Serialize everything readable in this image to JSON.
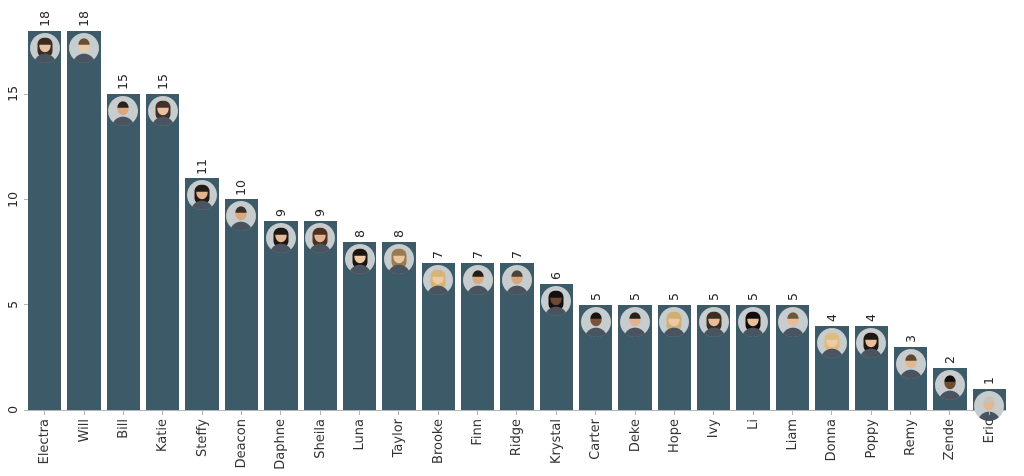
{
  "chart_data": {
    "type": "bar",
    "title": "",
    "xlabel": "",
    "ylabel": "",
    "categories": [
      "Electra",
      "Will",
      "Bill",
      "Katie",
      "Steffy",
      "Deacon",
      "Daphne",
      "Sheila",
      "Luna",
      "Taylor",
      "Brooke",
      "Finn",
      "Ridge",
      "Krystal",
      "Carter",
      "Deke",
      "Hope",
      "Ivy",
      "Li",
      "Liam",
      "Donna",
      "Poppy",
      "Remy",
      "Zende",
      "Eric"
    ],
    "values": [
      18,
      18,
      15,
      15,
      11,
      10,
      9,
      9,
      8,
      8,
      7,
      7,
      7,
      6,
      5,
      5,
      5,
      5,
      5,
      5,
      4,
      4,
      3,
      2,
      1
    ],
    "value_labels": [
      "18",
      "18",
      "15",
      "15",
      "11",
      "10",
      "9",
      "9",
      "8",
      "8",
      "7",
      "7",
      "7",
      "6",
      "5",
      "5",
      "5",
      "5",
      "5",
      "5",
      "4",
      "4",
      "3",
      "2",
      "1"
    ],
    "y_ticks": [
      0,
      5,
      10,
      15
    ],
    "ylim": [
      0,
      19
    ],
    "grid": false,
    "legend_position": "none",
    "label_rotation": 90,
    "bar_color": "#3c5a67",
    "axis_color": "#b5b5b5",
    "text_color": "#262626",
    "avatars": [
      {
        "skin": "#e8c2a0",
        "hair": "#3a2b22",
        "long": true
      },
      {
        "skin": "#eac9a6",
        "hair": "#6b4f35",
        "long": false
      },
      {
        "skin": "#d9a87e",
        "hair": "#2a211c",
        "long": false
      },
      {
        "skin": "#e9c2a0",
        "hair": "#44302a",
        "long": true
      },
      {
        "skin": "#e2b38f",
        "hair": "#221a16",
        "long": true
      },
      {
        "skin": "#d9a87e",
        "hair": "#39302a",
        "long": false
      },
      {
        "skin": "#e6ba96",
        "hair": "#1e1713",
        "long": true
      },
      {
        "skin": "#e3b491",
        "hair": "#4e3020",
        "long": true
      },
      {
        "skin": "#efc9a2",
        "hair": "#1c1512",
        "long": true
      },
      {
        "skin": "#ecc5a0",
        "hair": "#9c7a50",
        "long": true
      },
      {
        "skin": "#eec9a4",
        "hair": "#d6b376",
        "long": true
      },
      {
        "skin": "#daa97e",
        "hair": "#241d18",
        "long": false
      },
      {
        "skin": "#d8a67a",
        "hair": "#4c423a",
        "long": false
      },
      {
        "skin": "#6d4a34",
        "hair": "#151010",
        "long": true
      },
      {
        "skin": "#7a5238",
        "hair": "#1a1410",
        "long": false
      },
      {
        "skin": "#e2b38e",
        "hair": "#2b211b",
        "long": false
      },
      {
        "skin": "#edc8a2",
        "hair": "#cdb072",
        "long": true
      },
      {
        "skin": "#e7bc98",
        "hair": "#3c2d22",
        "long": true
      },
      {
        "skin": "#e9c09a",
        "hair": "#120d0a",
        "long": true
      },
      {
        "skin": "#e7bc96",
        "hair": "#6e563a",
        "long": false
      },
      {
        "skin": "#eecaa6",
        "hair": "#dcbd7e",
        "long": true
      },
      {
        "skin": "#e8c09c",
        "hair": "#1f1712",
        "long": true
      },
      {
        "skin": "#e4b790",
        "hair": "#5c4630",
        "long": false
      },
      {
        "skin": "#6e4a33",
        "hair": "#120d0a",
        "long": false
      },
      {
        "skin": "#e3b795",
        "hair": "#c9c2b6",
        "long": false
      }
    ]
  }
}
